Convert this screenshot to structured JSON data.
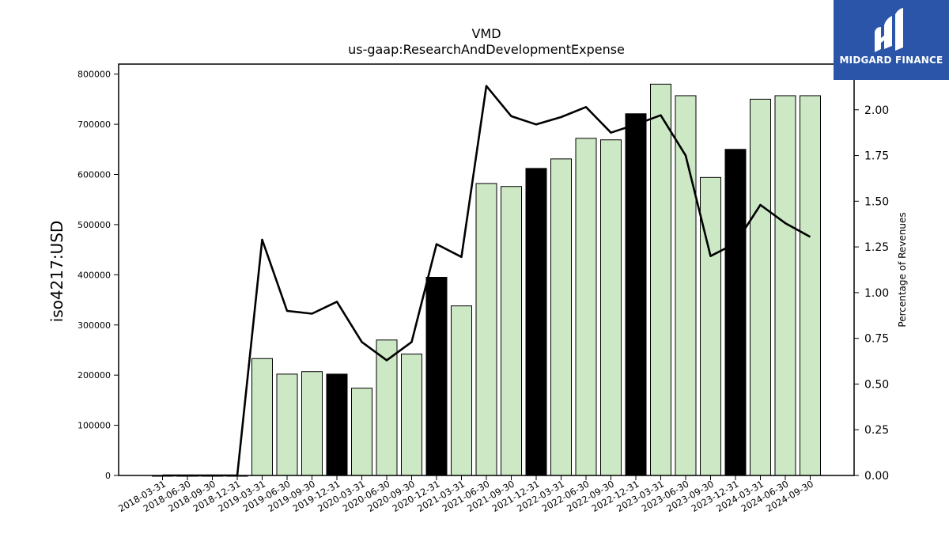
{
  "brand": {
    "name": "MIDGARD FINANCE",
    "bg_color": "#2a55a8"
  },
  "chart_data": {
    "type": "bar",
    "title": "VMD",
    "subtitle": "us-gaap:ResearchAndDevelopmentExpense",
    "ylabel": "iso4217:USD",
    "y2label": "Percentage of Revenues",
    "ylim": [
      0,
      820000
    ],
    "y2lim": [
      0,
      2.25
    ],
    "yticks": [
      0,
      100000,
      200000,
      300000,
      400000,
      500000,
      600000,
      700000,
      800000
    ],
    "y2ticks": [
      "0.00",
      "0.25",
      "0.50",
      "0.75",
      "1.00",
      "1.25",
      "1.50",
      "1.75",
      "2.00"
    ],
    "bar_colors": {
      "quarter": "#cce8c4",
      "year_end": "#000000",
      "edge": "#000000"
    },
    "categories": [
      "2018-03-31",
      "2018-06-30",
      "2018-09-30",
      "2018-12-31",
      "2019-03-31",
      "2019-06-30",
      "2019-09-30",
      "2019-12-31",
      "2020-03-31",
      "2020-06-30",
      "2020-09-30",
      "2020-12-31",
      "2021-03-31",
      "2021-06-30",
      "2021-09-30",
      "2021-12-31",
      "2022-03-31",
      "2022-06-30",
      "2022-09-30",
      "2022-12-31",
      "2023-03-31",
      "2023-06-30",
      "2023-09-30",
      "2023-12-31",
      "2024-03-31",
      "2024-06-30",
      "2024-09-30"
    ],
    "series": [
      {
        "type": "bar",
        "values": [
          0,
          0,
          0,
          0,
          233000,
          202000,
          207000,
          202000,
          174000,
          270000,
          242000,
          395000,
          338000,
          582000,
          576000,
          612000,
          631000,
          672000,
          669000,
          721000,
          780000,
          757000,
          594000,
          650000,
          750000,
          757000,
          757000
        ],
        "highlight": [
          false,
          false,
          false,
          true,
          false,
          false,
          false,
          true,
          false,
          false,
          false,
          true,
          false,
          false,
          false,
          true,
          false,
          false,
          false,
          true,
          false,
          false,
          false,
          true,
          false,
          false,
          false
        ]
      },
      {
        "type": "line",
        "axis": "right",
        "color": "#000000",
        "values": [
          0,
          0,
          0,
          0,
          1.29,
          0.9,
          0.885,
          0.95,
          0.73,
          0.63,
          0.73,
          1.265,
          1.195,
          2.13,
          1.965,
          1.92,
          1.96,
          2.015,
          1.875,
          1.92,
          1.97,
          1.75,
          1.2,
          1.27,
          1.48,
          1.38,
          1.305
        ]
      }
    ]
  }
}
